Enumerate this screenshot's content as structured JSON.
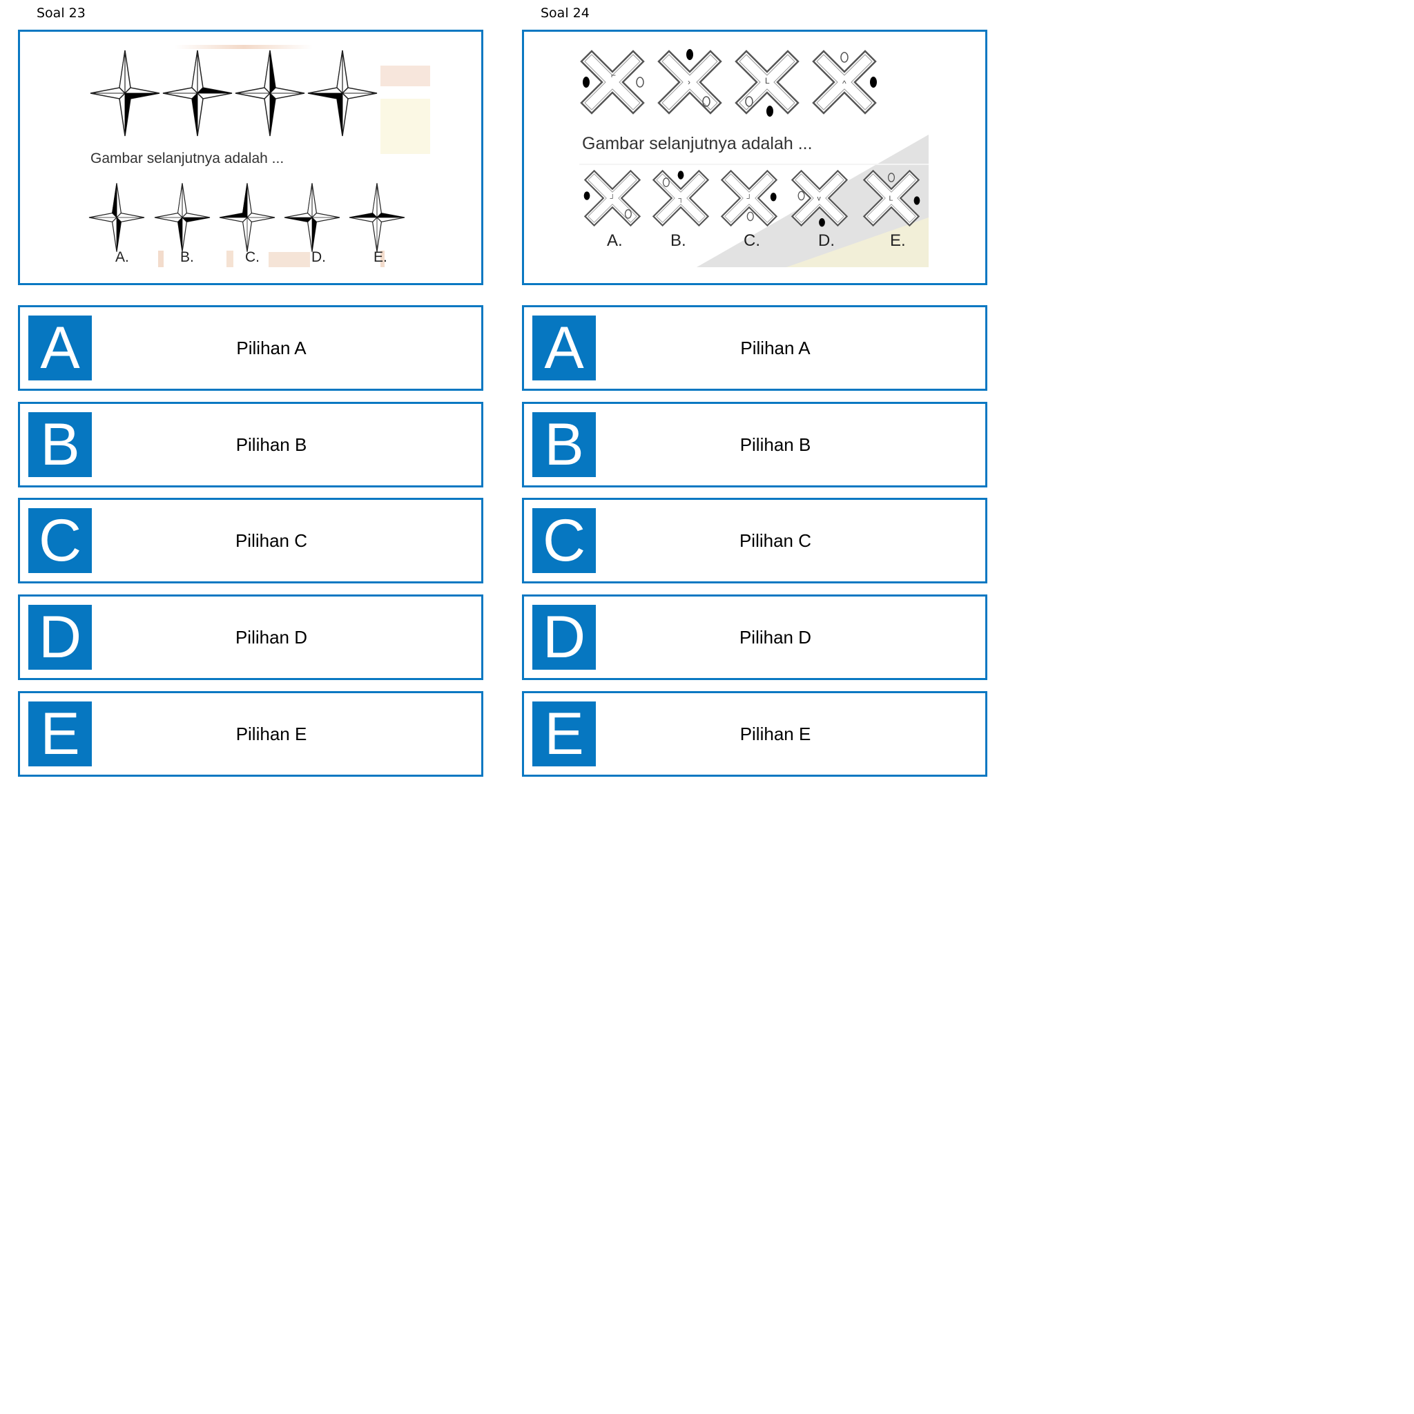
{
  "questions": [
    {
      "title": "Soal 23",
      "prompt": "Gambar selanjutnya adalah ...",
      "options": [
        "A.",
        "B.",
        "C.",
        "D.",
        "E."
      ],
      "choices": [
        {
          "letter": "A",
          "text": "Pilihan  A"
        },
        {
          "letter": "B",
          "text": "Pilihan B"
        },
        {
          "letter": "C",
          "text": "Pilihan C"
        },
        {
          "letter": "D",
          "text": "Pilihan D"
        },
        {
          "letter": "E",
          "text": "Pilihan E"
        }
      ]
    },
    {
      "title": "Soal 24",
      "prompt": "Gambar selanjutnya adalah ...",
      "options": [
        "A.",
        "B.",
        "C.",
        "D.",
        "E."
      ],
      "choices": [
        {
          "letter": "A",
          "text": "Pilihan  A"
        },
        {
          "letter": "B",
          "text": "Pilihan B"
        },
        {
          "letter": "C",
          "text": "Pilihan C"
        },
        {
          "letter": "D",
          "text": "Pilihan D"
        },
        {
          "letter": "E",
          "text": "Pilihan E"
        }
      ]
    }
  ],
  "colors": {
    "border": "#0a78c2",
    "letter_bg": "#0677c1",
    "letter_fg": "#ffffff"
  }
}
